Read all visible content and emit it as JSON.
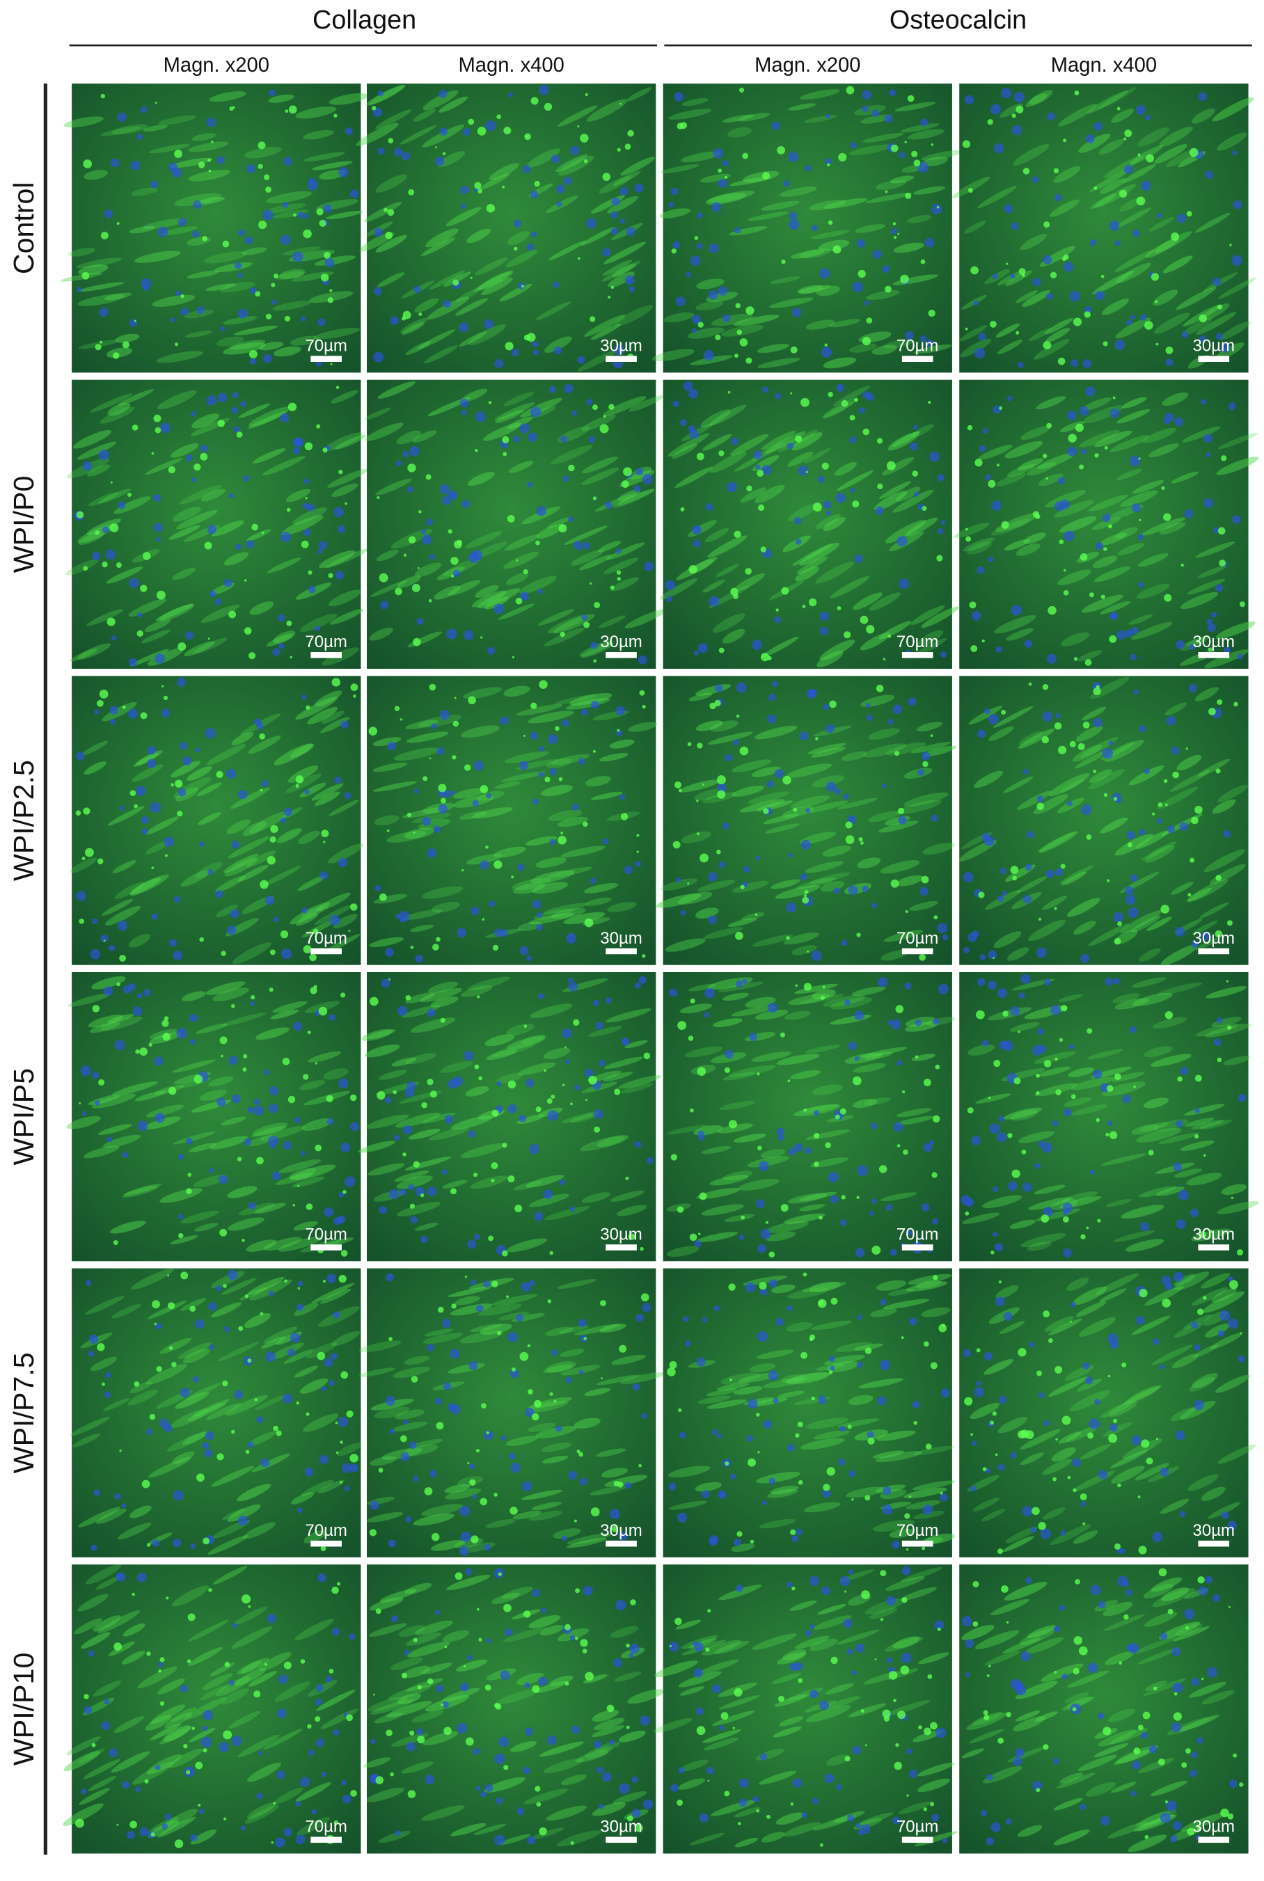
{
  "headers": {
    "groups": [
      "Collagen",
      "Osteocalcin"
    ],
    "columns": [
      "Magn. x200",
      "Magn. x400",
      "Magn. x200",
      "Magn. x400"
    ]
  },
  "rows": [
    "Control",
    "WPI/P0",
    "WPI/P2.5",
    "WPI/P5",
    "WPI/P7.5",
    "WPI/P10"
  ],
  "scale_bars": [
    [
      "70µm",
      "30µm",
      "70µm",
      "30µm"
    ],
    [
      "70µm",
      "30µm",
      "70µm",
      "30µm"
    ],
    [
      "70µm",
      "30µm",
      "70µm",
      "30µm"
    ],
    [
      "70µm",
      "30µm",
      "70µm",
      "30µm"
    ],
    [
      "70µm",
      "30µm",
      "70µm",
      "30µm"
    ],
    [
      "70µm",
      "30µm",
      "70µm",
      "30µm"
    ]
  ]
}
